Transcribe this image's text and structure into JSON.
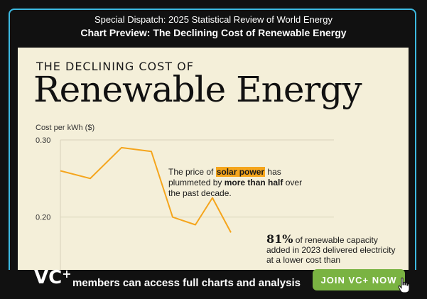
{
  "header": {
    "line1": "Special Dispatch: 2025 Statistical Review of World Energy",
    "line2": "Chart Preview: The Declining Cost of Renewable Energy"
  },
  "card": {
    "kicker": "THE DECLINING COST OF",
    "title": "Renewable Energy",
    "note1": {
      "pre": "The price of ",
      "highlight": "solar power",
      "mid": " has plummeted by ",
      "bold": "more than half",
      "post": " over the past decade."
    },
    "note2": {
      "big": "81%",
      "text": " of renewable capacity added in 2023 delivered electricity at a lower cost than"
    }
  },
  "chart_data": {
    "type": "line",
    "ylabel": "Cost per kWh ($)",
    "yticks": [
      "0.30",
      "0.20"
    ],
    "ylim": [
      0.15,
      0.3
    ],
    "series": [
      {
        "values": [
          0.26,
          0.25,
          0.29,
          0.285,
          0.2,
          0.19,
          0.225,
          0.18
        ]
      }
    ],
    "colors": {
      "line": "#f5a51c",
      "grid": "#d8d2ba"
    }
  },
  "banner": {
    "logo": "VC",
    "logo_plus": "+",
    "text": "members can access full charts and analysis",
    "button": "JOIN VC+ NOW"
  },
  "colors": {
    "background": "#111111",
    "frame": "#3cb9e0",
    "card": "#f4efd9",
    "button": "#7ab342"
  }
}
